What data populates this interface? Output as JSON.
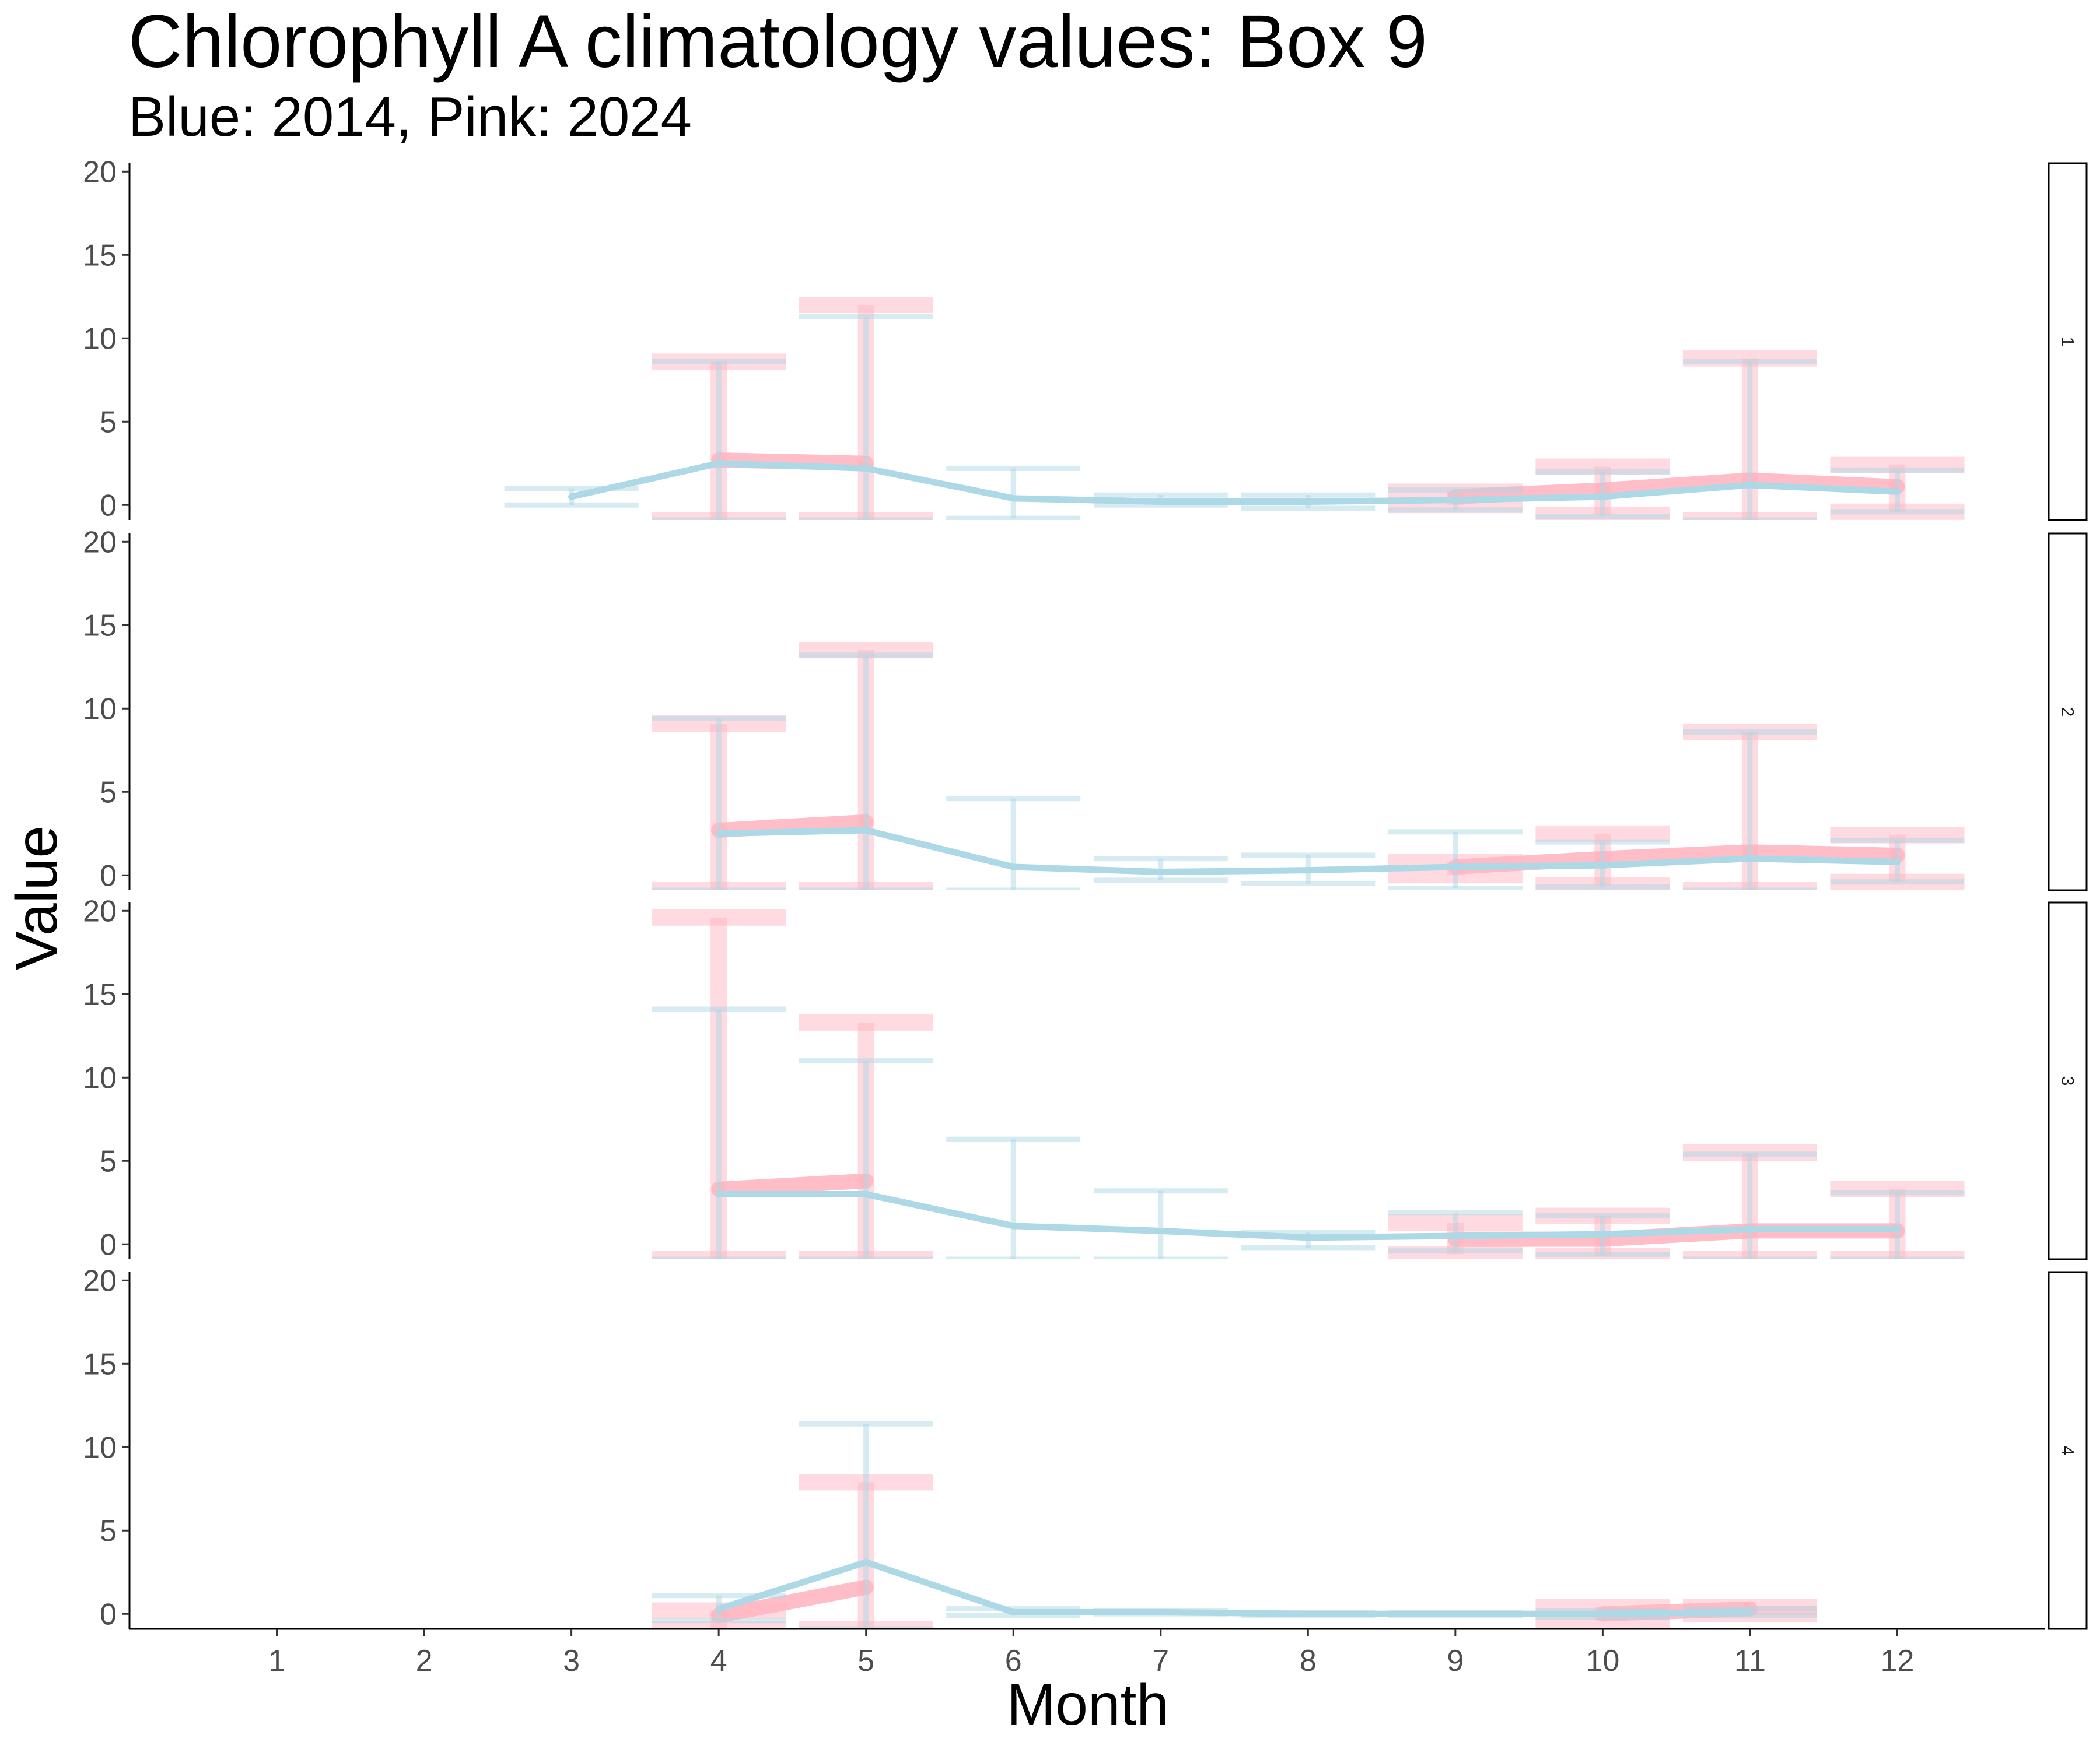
{
  "chart_data": {
    "type": "line",
    "title": "Chlorophyll A climatology values: Box 9",
    "subtitle": "Blue: 2014, Pink: 2024",
    "xlabel": "Month",
    "ylabel": "Value",
    "x_ticks": [
      "1",
      "2",
      "3",
      "4",
      "5",
      "6",
      "7",
      "8",
      "9",
      "10",
      "11",
      "12"
    ],
    "y_ticks": [
      0,
      5,
      10,
      15,
      20
    ],
    "xlim": [
      0,
      13
    ],
    "ylim": [
      -0.9,
      20.5
    ],
    "grid": false,
    "facet_strip_side": "right",
    "colors": {
      "blue": "#add8e6",
      "pink": "#ffb6c1"
    },
    "panels": [
      {
        "label": "1",
        "series": [
          {
            "key": "pink",
            "color": "#ffb6c1",
            "x": [
              4,
              5,
              9,
              10,
              11,
              12
            ],
            "y": [
              2.7,
              2.5,
              0.5,
              0.9,
              1.5,
              1.1
            ],
            "ymin": [
              -0.9,
              -0.9,
              0.0,
              -0.6,
              -0.9,
              -0.4
            ],
            "ymax": [
              8.6,
              12.0,
              0.8,
              2.3,
              8.8,
              2.4
            ]
          },
          {
            "key": "blue",
            "color": "#add8e6",
            "x": [
              3,
              4,
              5,
              6,
              7,
              8,
              9,
              10,
              11,
              12
            ],
            "y": [
              0.5,
              2.5,
              2.2,
              0.4,
              0.2,
              0.2,
              0.3,
              0.5,
              1.2,
              0.8
            ],
            "ymin": [
              0.0,
              -0.9,
              -0.9,
              -0.8,
              0.0,
              -0.2,
              -0.3,
              -0.7,
              -0.9,
              -0.4
            ],
            "ymax": [
              1.0,
              8.6,
              11.3,
              2.2,
              0.6,
              0.6,
              0.9,
              2.0,
              8.6,
              2.1
            ]
          }
        ]
      },
      {
        "label": "2",
        "series": [
          {
            "key": "pink",
            "color": "#ffb6c1",
            "x": [
              4,
              5,
              9,
              10,
              11,
              12
            ],
            "y": [
              2.7,
              3.2,
              0.5,
              1.0,
              1.4,
              1.2
            ],
            "ymin": [
              -0.9,
              -0.9,
              0.0,
              -0.6,
              -0.9,
              -0.4
            ],
            "ymax": [
              9.1,
              13.5,
              0.8,
              2.5,
              8.6,
              2.4
            ]
          },
          {
            "key": "blue",
            "color": "#add8e6",
            "x": [
              4,
              5,
              6,
              7,
              8,
              9,
              10,
              11,
              12
            ],
            "y": [
              2.5,
              2.7,
              0.5,
              0.2,
              0.3,
              0.5,
              0.6,
              1.0,
              0.8
            ],
            "ymin": [
              -0.9,
              -0.9,
              -0.9,
              -0.3,
              -0.5,
              -0.8,
              -0.7,
              -0.9,
              -0.4
            ],
            "ymax": [
              9.4,
              13.2,
              4.6,
              1.0,
              1.2,
              2.6,
              2.0,
              8.6,
              2.1
            ]
          }
        ]
      },
      {
        "label": "3",
        "series": [
          {
            "key": "pink",
            "color": "#ffb6c1",
            "x": [
              4,
              5,
              9,
              10,
              11,
              12
            ],
            "y": [
              3.3,
              3.8,
              0.3,
              0.3,
              0.8,
              0.8
            ],
            "ymin": [
              -0.9,
              -0.9,
              -0.6,
              -0.7,
              -0.9,
              -0.9
            ],
            "ymax": [
              19.6,
              13.3,
              1.3,
              1.7,
              5.5,
              3.3
            ]
          },
          {
            "key": "blue",
            "color": "#add8e6",
            "x": [
              4,
              5,
              6,
              7,
              8,
              9,
              10,
              11,
              12
            ],
            "y": [
              3.0,
              3.0,
              1.1,
              0.8,
              0.4,
              0.5,
              0.6,
              0.9,
              0.9
            ],
            "ymin": [
              -0.9,
              -0.9,
              -0.9,
              -0.9,
              -0.2,
              -0.4,
              -0.6,
              -0.9,
              -0.9
            ],
            "ymax": [
              14.1,
              11.0,
              6.3,
              3.2,
              0.7,
              1.9,
              1.7,
              5.4,
              3.1
            ]
          }
        ]
      },
      {
        "label": "4",
        "series": [
          {
            "key": "pink",
            "color": "#ffb6c1",
            "x": [
              4,
              5,
              10,
              11
            ],
            "y": [
              -0.1,
              1.6,
              0.0,
              0.3
            ],
            "ymin": [
              -0.9,
              -0.9,
              -0.4,
              0.0
            ],
            "ymax": [
              0.2,
              7.9,
              0.4,
              0.4
            ]
          },
          {
            "key": "blue",
            "color": "#add8e6",
            "x": [
              4,
              5,
              6,
              7,
              8,
              9,
              10,
              11
            ],
            "y": [
              0.3,
              3.1,
              0.1,
              0.1,
              0.0,
              0.0,
              0.0,
              0.1
            ],
            "ymin": [
              -0.4,
              -0.9,
              -0.1,
              0.0,
              -0.1,
              -0.1,
              -0.2,
              -0.1
            ],
            "ymax": [
              1.1,
              11.4,
              0.3,
              0.2,
              0.1,
              0.1,
              0.2,
              0.3
            ]
          }
        ]
      }
    ]
  }
}
